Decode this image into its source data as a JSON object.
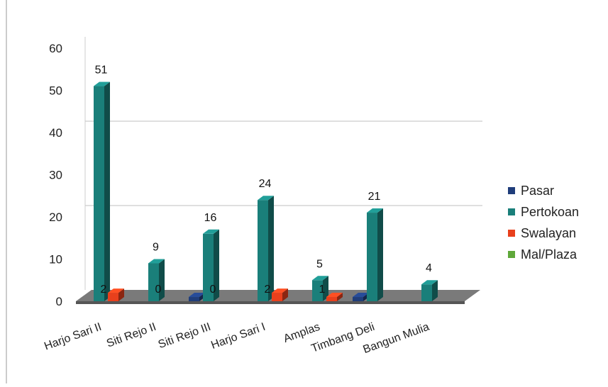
{
  "chart_data": {
    "type": "bar",
    "title": "",
    "xlabel": "",
    "ylabel": "",
    "ylim": [
      0,
      60
    ],
    "yticks": [
      0,
      10,
      20,
      30,
      40,
      50,
      60
    ],
    "categories": [
      "Harjo Sari II",
      "Siti Rejo II",
      "Siti Rejo III",
      "Harjo Sari I",
      "Amplas",
      "Timbang Deli",
      "Bangun Mulia"
    ],
    "series": [
      {
        "name": "Pasar",
        "color": "#1f3d7a",
        "values": [
          0,
          0,
          1,
          0,
          0,
          1,
          0
        ]
      },
      {
        "name": "Pertokoan",
        "color": "#1a7f7a",
        "values": [
          51,
          9,
          16,
          24,
          5,
          21,
          4
        ]
      },
      {
        "name": "Swalayan",
        "color": "#e8401c",
        "values": [
          2,
          0,
          0,
          2,
          1,
          0,
          0
        ]
      },
      {
        "name": "Mal/Plaza",
        "color": "#5fa83a",
        "values": [
          0,
          0,
          0,
          0,
          0,
          0,
          0
        ]
      }
    ],
    "data_labels": {
      "Pertokoan": [
        "51",
        "9",
        "16",
        "24",
        "5",
        "21",
        "4"
      ],
      "Swalayan": [
        "2",
        "0",
        "0",
        "2",
        "1",
        "",
        ""
      ],
      "Pasar": [
        "",
        "",
        "",
        "",
        "",
        "",
        ""
      ]
    },
    "legend_position": "right",
    "grid": true,
    "style": "3d"
  }
}
